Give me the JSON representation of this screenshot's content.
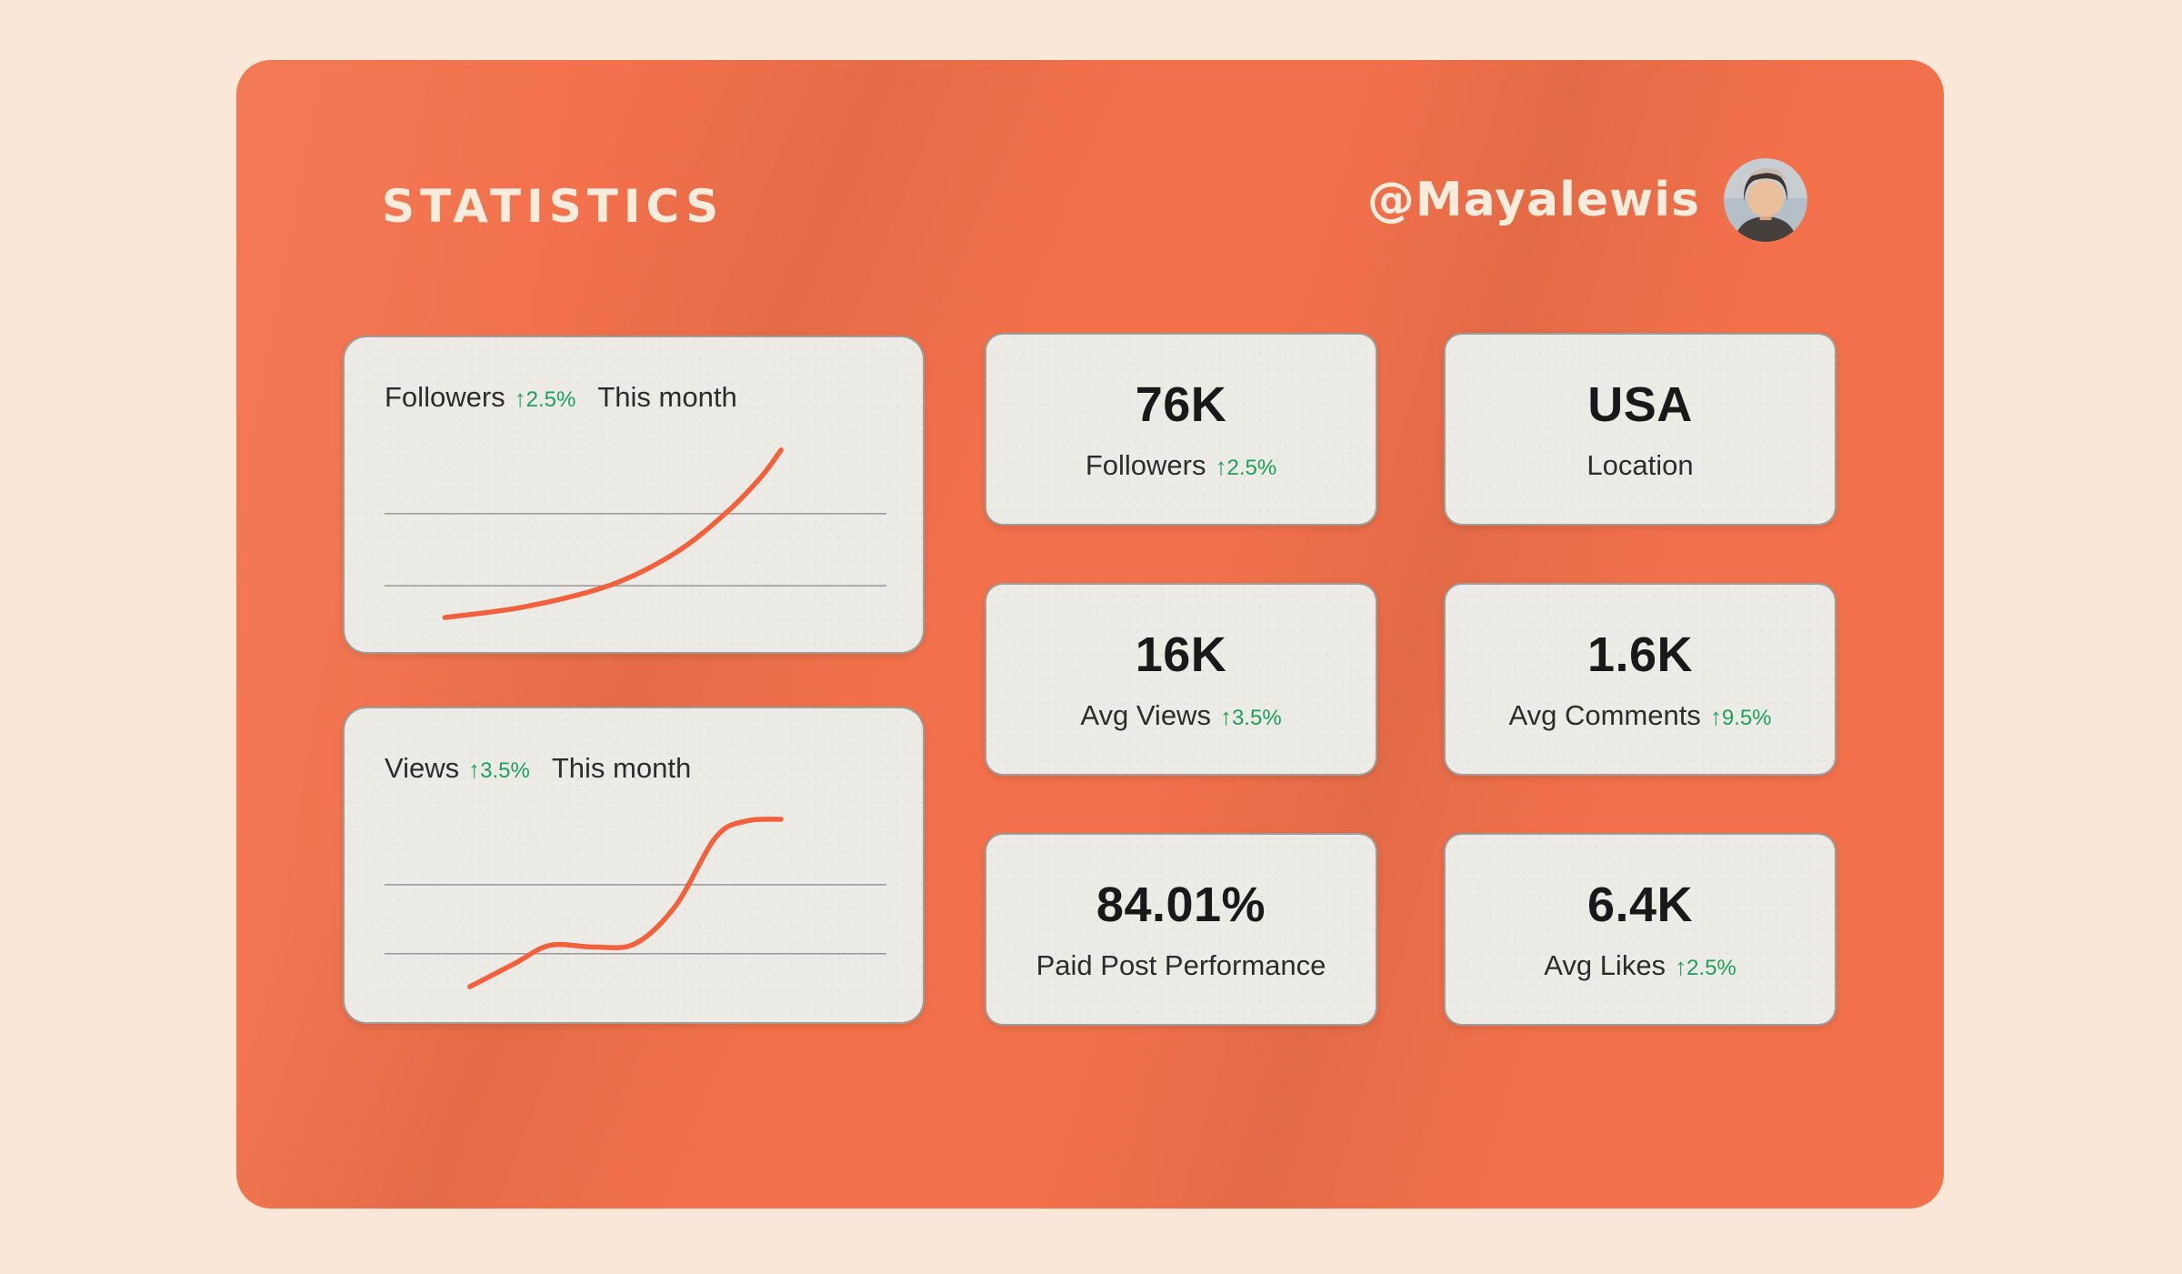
{
  "header": {
    "title": "STATISTICS",
    "handle": "@Mayalewis"
  },
  "icons": {
    "up_arrow": "↑",
    "avatar": "profile-photo"
  },
  "colors": {
    "page_background": "#FBE7D7",
    "panel": "#F2714B",
    "card": "#EDEBE5",
    "accent_line": "#F2603C",
    "positive_green": "#1CA05C",
    "text_dark": "#1F1F1F",
    "title_cream": "#F8EDDC"
  },
  "charts": [
    {
      "label": "Followers",
      "delta": "2.5%",
      "period": "This month",
      "chart_data": {
        "type": "line",
        "title": "Followers This month",
        "series": [
          {
            "name": "Followers",
            "points": [
              [
                12,
                4
              ],
              [
                28,
                10
              ],
              [
                45,
                22
              ],
              [
                58,
                40
              ],
              [
                68,
                62
              ],
              [
                75,
                82
              ],
              [
                79,
                97
              ]
            ]
          }
        ],
        "x_range": [
          0,
          100
        ],
        "y_range": [
          0,
          100
        ],
        "axes_labeled": false,
        "grid": "2 horizontal gridlines",
        "legend": "none",
        "line_color": "#F2603C",
        "trend": "smooth accelerating increase"
      }
    },
    {
      "label": "Views",
      "delta": "3.5%",
      "period": "This month",
      "chart_data": {
        "type": "line",
        "title": "Views This month",
        "series": [
          {
            "name": "Views",
            "points": [
              [
                17,
                5
              ],
              [
                26,
                18
              ],
              [
                33,
                28
              ],
              [
                42,
                27
              ],
              [
                50,
                29
              ],
              [
                58,
                50
              ],
              [
                66,
                88
              ],
              [
                72,
                97
              ],
              [
                79,
                98
              ]
            ]
          }
        ],
        "x_range": [
          0,
          100
        ],
        "y_range": [
          0,
          100
        ],
        "axes_labeled": false,
        "grid": "2 horizontal gridlines",
        "legend": "none",
        "line_color": "#F2603C",
        "trend": "rise, mid plateau, steep rise, flattens at top"
      }
    }
  ],
  "stats": [
    {
      "value": "76K",
      "label": "Followers",
      "delta": "2.5%"
    },
    {
      "value": "USA",
      "label": "Location",
      "delta": ""
    },
    {
      "value": "16K",
      "label": "Avg Views",
      "delta": "3.5%"
    },
    {
      "value": "1.6K",
      "label": "Avg Comments",
      "delta": "9.5%"
    },
    {
      "value": "84.01%",
      "label": "Paid Post Performance",
      "delta": ""
    },
    {
      "value": "6.4K",
      "label": "Avg Likes",
      "delta": "2.5%"
    }
  ]
}
